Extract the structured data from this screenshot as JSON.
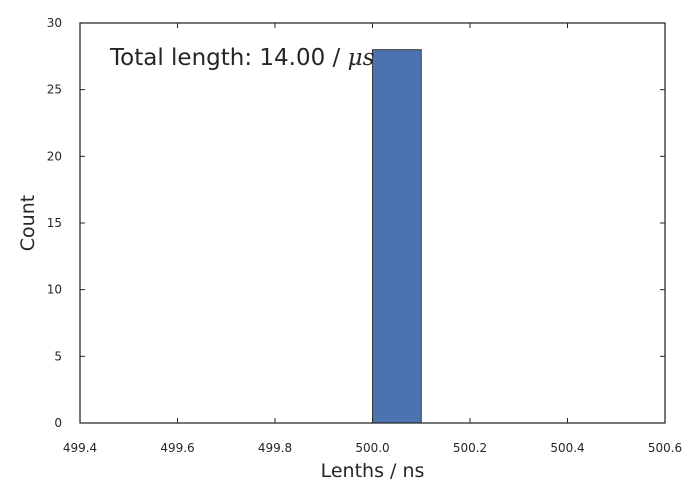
{
  "chart_data": {
    "type": "bar",
    "title": "",
    "xlabel": "Lenths / ns",
    "ylabel": "Count",
    "xlim": [
      499.4,
      500.6
    ],
    "ylim": [
      0,
      30
    ],
    "xticks": [
      499.4,
      499.6,
      499.8,
      500.0,
      500.2,
      500.4,
      500.6
    ],
    "xtick_labels": [
      "499.4",
      "499.6",
      "499.8",
      "500.0",
      "500.2",
      "500.4",
      "500.6"
    ],
    "yticks": [
      0,
      5,
      10,
      15,
      20,
      25,
      30
    ],
    "ytick_labels": [
      "0",
      "5",
      "10",
      "15",
      "20",
      "25",
      "30"
    ],
    "bins": [
      {
        "x0": 500.0,
        "x1": 500.1,
        "value": 28
      }
    ],
    "annotation": {
      "text_prefix": "Total length: 14.00 / ",
      "unit": "μs"
    },
    "grid": false,
    "color": "#4c72b0",
    "edge_color": "#3a3a3a"
  }
}
